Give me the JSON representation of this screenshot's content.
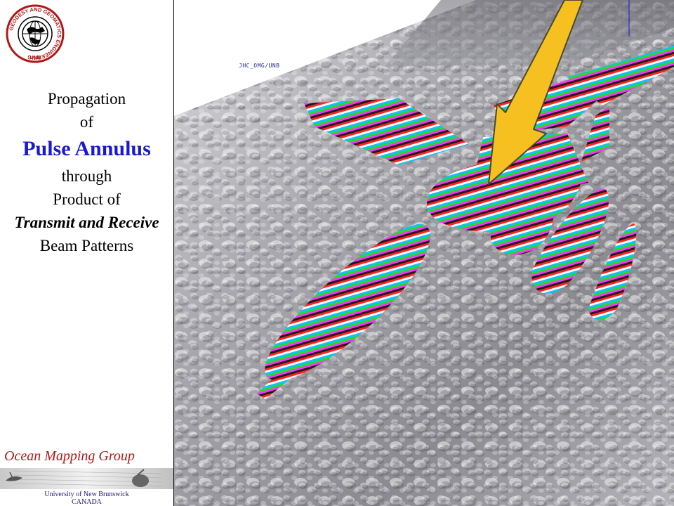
{
  "logo": {
    "ring_text": "GEODESY AND GEOMATICS ENGINEERING",
    "bottom_text": "UNB"
  },
  "title": {
    "line1": "Propagation",
    "line2": "of",
    "line3": "Pulse Annulus",
    "line4": "through",
    "line5": "Product of",
    "line6": "Transmit and Receive",
    "line7": "Beam Patterns"
  },
  "visualization": {
    "watermark": "JHC_OMG/UNB",
    "arrow_icon": "pointer-arrow-icon"
  },
  "footer": {
    "group": "Ocean Mapping Group",
    "university": "University of New Brunswick",
    "country": "CANADA"
  },
  "colors": {
    "title_emphasis": "#1a1acc",
    "group_name": "#b01818",
    "arrow": "#f5c020"
  }
}
